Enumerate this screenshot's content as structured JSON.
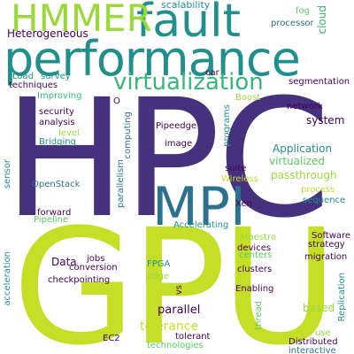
{
  "words": {
    "hpc": "HPC",
    "gpu": "GPU",
    "performance": "performance",
    "fault": "fault",
    "hmmer": "HMMER",
    "mpi": "MPI",
    "virtualization": "virtualization",
    "heterogeneous": "Heterogeneous",
    "scalability": "scalability",
    "fog": "fog",
    "cloud": "cloud",
    "processor": "processor",
    "load": "Load",
    "techniques": "techniques",
    "survey": "survey",
    "car": "car",
    "segmentation": "segmentation",
    "improving": "Improving",
    "boost": "Boost",
    "network": "network",
    "security": "security",
    "analysis": "analysis",
    "o": "O",
    "computing": "computing",
    "programs": "programs",
    "level": "level",
    "pipeedge": "Pipeedge",
    "system": "system",
    "bridging": "Bridging",
    "image": "image",
    "application": "Application",
    "virtualized": "virtualized",
    "sensor": "sensor",
    "parallelism": "parallelism",
    "suite": "suite",
    "wireless": "Wireless",
    "passthrough": "passthrough",
    "openstack": "OpenStack",
    "process": "process",
    "sequence": "sequence",
    "xen": "Xen",
    "forward": "forward",
    "pipeline": "Pipeline",
    "accelerating": "Accelerating",
    "software": "Software",
    "maestro": "Maestro",
    "strategy": "strategy",
    "devices": "devices",
    "centers": "centers",
    "migration": "migration",
    "data": "Data",
    "jobs": "jobs",
    "conversion": "conversion",
    "fpga": "FPGA",
    "clusters": "clusters",
    "acceleration": "acceleration",
    "checkpointing": "checkpointing",
    "edge": "edge",
    "enabling": "Enabling",
    "vs": "vs",
    "replication": "Replication",
    "parallel": "parallel",
    "based": "based",
    "tolerance": "tolerance",
    "thread": "thread",
    "use": "use",
    "ec2": "EC2",
    "tolerant": "tolerant",
    "distributed": "Distributed",
    "technologies": "technologies",
    "interactive": "interactive"
  }
}
